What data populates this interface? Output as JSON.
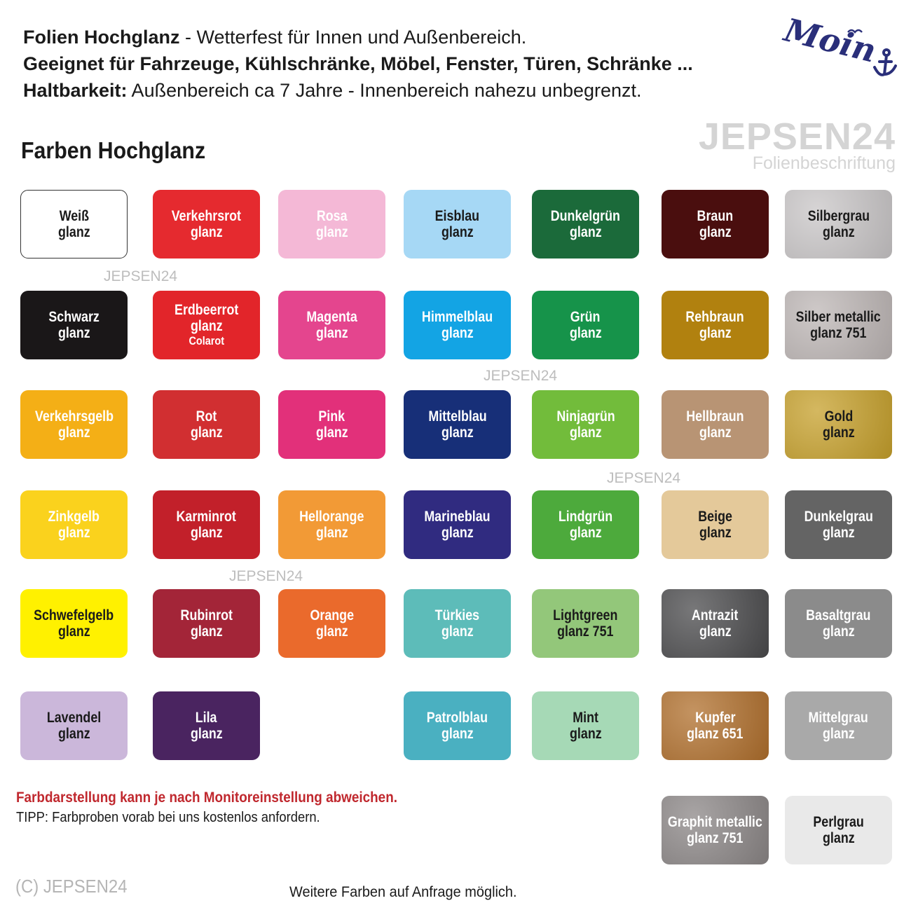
{
  "header": {
    "line1_bold": "Folien Hochglanz",
    "line1_rest": " - Wetterfest für Innen und Außenbereich.",
    "line2": "Geeignet für Fahrzeuge, Kühlschränke, Möbel, Fenster, Türen, Schränke ...",
    "line3_bold": "Haltbarkeit:",
    "line3_rest": " Außenbereich ca 7 Jahre - Innenbereich nahezu unbegrenzt."
  },
  "logo_moin": {
    "text": "Moin",
    "icon": "anchor-icon",
    "color": "#2a2f7a"
  },
  "brand": {
    "name": "JEPSEN24",
    "tagline": "Folienbeschriftung"
  },
  "section_title": "Farben Hochglanz",
  "watermark": "JEPSEN24",
  "swatches": [
    {
      "lines": [
        "Weiß",
        "glanz"
      ],
      "bg": "#ffffff",
      "fg": "#1a1a1a",
      "border": true
    },
    {
      "lines": [
        "Verkehrsrot",
        "glanz"
      ],
      "bg": "#e52a2f",
      "fg": "#ffffff"
    },
    {
      "lines": [
        "Rosa",
        "glanz"
      ],
      "bg": "#f4b8d6",
      "fg": "#ffffff"
    },
    {
      "lines": [
        "Eisblau",
        "glanz"
      ],
      "bg": "#a6d8f5",
      "fg": "#1a1a1a"
    },
    {
      "lines": [
        "Dunkelgrün",
        "glanz"
      ],
      "bg": "#1b6a3a",
      "fg": "#ffffff"
    },
    {
      "lines": [
        "Braun",
        "glanz"
      ],
      "bg": "#4a0e0e",
      "fg": "#ffffff"
    },
    {
      "lines": [
        "Silbergrau",
        "glanz"
      ],
      "bg": "#c9c6c7",
      "fg": "#1a1a1a",
      "metallic": true
    },
    {
      "lines": [
        "Schwarz",
        "glanz"
      ],
      "bg": "#1a1718",
      "fg": "#ffffff"
    },
    {
      "lines": [
        "Erdbeerrot",
        "glanz"
      ],
      "sub": "Colarot",
      "bg": "#e2252a",
      "fg": "#ffffff"
    },
    {
      "lines": [
        "Magenta",
        "glanz"
      ],
      "bg": "#e4458e",
      "fg": "#ffffff"
    },
    {
      "lines": [
        "Himmelblau",
        "glanz"
      ],
      "bg": "#13a4e4",
      "fg": "#ffffff"
    },
    {
      "lines": [
        "Grün",
        "glanz"
      ],
      "bg": "#16934a",
      "fg": "#ffffff"
    },
    {
      "lines": [
        "Rehbraun",
        "glanz"
      ],
      "bg": "#b1810f",
      "fg": "#ffffff"
    },
    {
      "lines": [
        "Silber metallic",
        "glanz 751"
      ],
      "bg": "#bdb6b5",
      "fg": "#1a1a1a",
      "metallic": true
    },
    {
      "lines": [
        "Verkehrsgelb",
        "glanz"
      ],
      "bg": "#f4af16",
      "fg": "#ffffff"
    },
    {
      "lines": [
        "Rot",
        "glanz"
      ],
      "bg": "#d12f31",
      "fg": "#ffffff"
    },
    {
      "lines": [
        "Pink",
        "glanz"
      ],
      "bg": "#e2307a",
      "fg": "#ffffff"
    },
    {
      "lines": [
        "Mittelblau",
        "glanz"
      ],
      "bg": "#172f78",
      "fg": "#ffffff"
    },
    {
      "lines": [
        "Ninjagrün",
        "glanz"
      ],
      "bg": "#72bc3b",
      "fg": "#ffffff"
    },
    {
      "lines": [
        "Hellbraun",
        "glanz"
      ],
      "bg": "#b89474",
      "fg": "#ffffff"
    },
    {
      "lines": [
        "Gold",
        "glanz"
      ],
      "bg": "#c6a02b",
      "fg": "#1a1a1a",
      "metallic": true
    },
    {
      "lines": [
        "Zinkgelb",
        "glanz"
      ],
      "bg": "#fad21d",
      "fg": "#ffffff"
    },
    {
      "lines": [
        "Karminrot",
        "glanz"
      ],
      "bg": "#c2202a",
      "fg": "#ffffff"
    },
    {
      "lines": [
        "Hellorange",
        "glanz"
      ],
      "bg": "#f29a36",
      "fg": "#ffffff"
    },
    {
      "lines": [
        "Marineblau",
        "glanz"
      ],
      "bg": "#302b80",
      "fg": "#ffffff"
    },
    {
      "lines": [
        "Lindgrün",
        "glanz"
      ],
      "bg": "#4daa3c",
      "fg": "#ffffff"
    },
    {
      "lines": [
        "Beige",
        "glanz"
      ],
      "bg": "#e4c99a",
      "fg": "#1a1a1a"
    },
    {
      "lines": [
        "Dunkelgrau",
        "glanz"
      ],
      "bg": "#646464",
      "fg": "#ffffff"
    },
    {
      "lines": [
        "Schwefelgelb",
        "glanz"
      ],
      "bg": "#fff100",
      "fg": "#1a1a1a"
    },
    {
      "lines": [
        "Rubinrot",
        "glanz"
      ],
      "bg": "#a32538",
      "fg": "#ffffff"
    },
    {
      "lines": [
        "Orange",
        "glanz"
      ],
      "bg": "#ea6a2c",
      "fg": "#ffffff"
    },
    {
      "lines": [
        "Türkies",
        "glanz"
      ],
      "bg": "#5dbcb9",
      "fg": "#ffffff"
    },
    {
      "lines": [
        "Lightgreen",
        "glanz 751"
      ],
      "bg": "#93c77a",
      "fg": "#1a1a1a"
    },
    {
      "lines": [
        "Antrazit",
        "glanz"
      ],
      "bg": "#4a4a4c",
      "fg": "#ffffff",
      "metallic": true
    },
    {
      "lines": [
        "Basaltgrau",
        "glanz"
      ],
      "bg": "#8b8b8b",
      "fg": "#ffffff"
    },
    {
      "lines": [
        "Lavendel",
        "glanz"
      ],
      "bg": "#cbb7da",
      "fg": "#1a1a1a"
    },
    {
      "lines": [
        "Lila",
        "glanz"
      ],
      "bg": "#4a2460",
      "fg": "#ffffff"
    },
    {
      "lines": [
        "Patrolblau",
        "glanz"
      ],
      "bg": "#4ab0c1",
      "fg": "#ffffff"
    },
    {
      "lines": [
        "Mint",
        "glanz"
      ],
      "bg": "#a6d9b6",
      "fg": "#1a1a1a"
    },
    {
      "lines": [
        "Kupfer",
        "glanz 651"
      ],
      "bg": "#b06f2c",
      "fg": "#ffffff",
      "metallic": true
    },
    {
      "lines": [
        "Mittelgrau",
        "glanz"
      ],
      "bg": "#a9a9a9",
      "fg": "#ffffff"
    },
    {
      "lines": [
        "Graphit metallic",
        "glanz 751"
      ],
      "bg": "#8b8686",
      "fg": "#ffffff",
      "metallic": true
    },
    {
      "lines": [
        "Perlgrau",
        "glanz"
      ],
      "bg": "#e9e9e9",
      "fg": "#1a1a1a"
    }
  ],
  "footer": {
    "warning": "Farbdarstellung kann je nach Monitoreinstellung abweichen.",
    "tip": "TIPP: Farbproben vorab bei uns kostenlos anfordern.",
    "copyright": "(C) JEPSEN24",
    "more": "Weitere Farben auf Anfrage möglich."
  }
}
